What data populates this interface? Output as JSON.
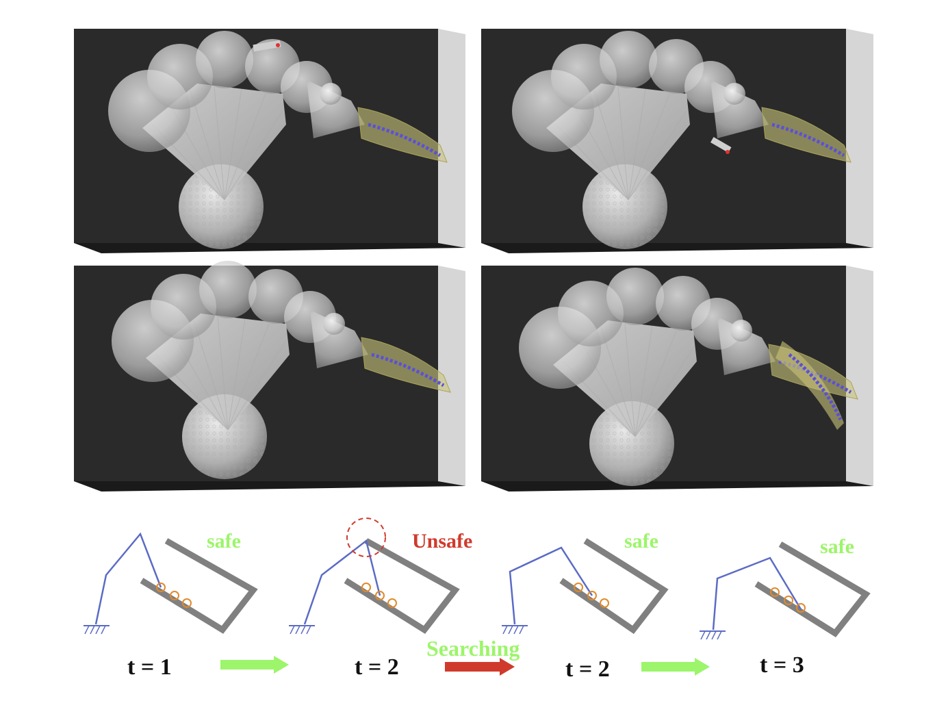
{
  "colors": {
    "safe": "#9cf56a",
    "unsafe": "#d03a2c",
    "arm": "#5b6bc4",
    "wall": "#808080",
    "marker": "#e08a2a",
    "panel_bg": "#2a2a2a",
    "panel_side": "#d6d6d6",
    "robot": "#d9d9d9",
    "gripper": "#c9c47a",
    "path": "#5a50d8"
  },
  "stages": [
    {
      "status": "safe",
      "time": "t = 1"
    },
    {
      "status": "Unsafe",
      "time": "t = 2"
    },
    {
      "status": "safe",
      "time": "t = 2"
    },
    {
      "status": "safe",
      "time": "t = 3"
    }
  ],
  "transitions": [
    {
      "label": "",
      "kind": "safe-arrow"
    },
    {
      "label": "Searching",
      "kind": "unsafe-arrow"
    },
    {
      "label": "",
      "kind": "safe-arrow"
    }
  ],
  "panels": [
    {
      "icon": "robot-render-1"
    },
    {
      "icon": "robot-render-2"
    },
    {
      "icon": "robot-render-3"
    },
    {
      "icon": "robot-render-4"
    }
  ]
}
